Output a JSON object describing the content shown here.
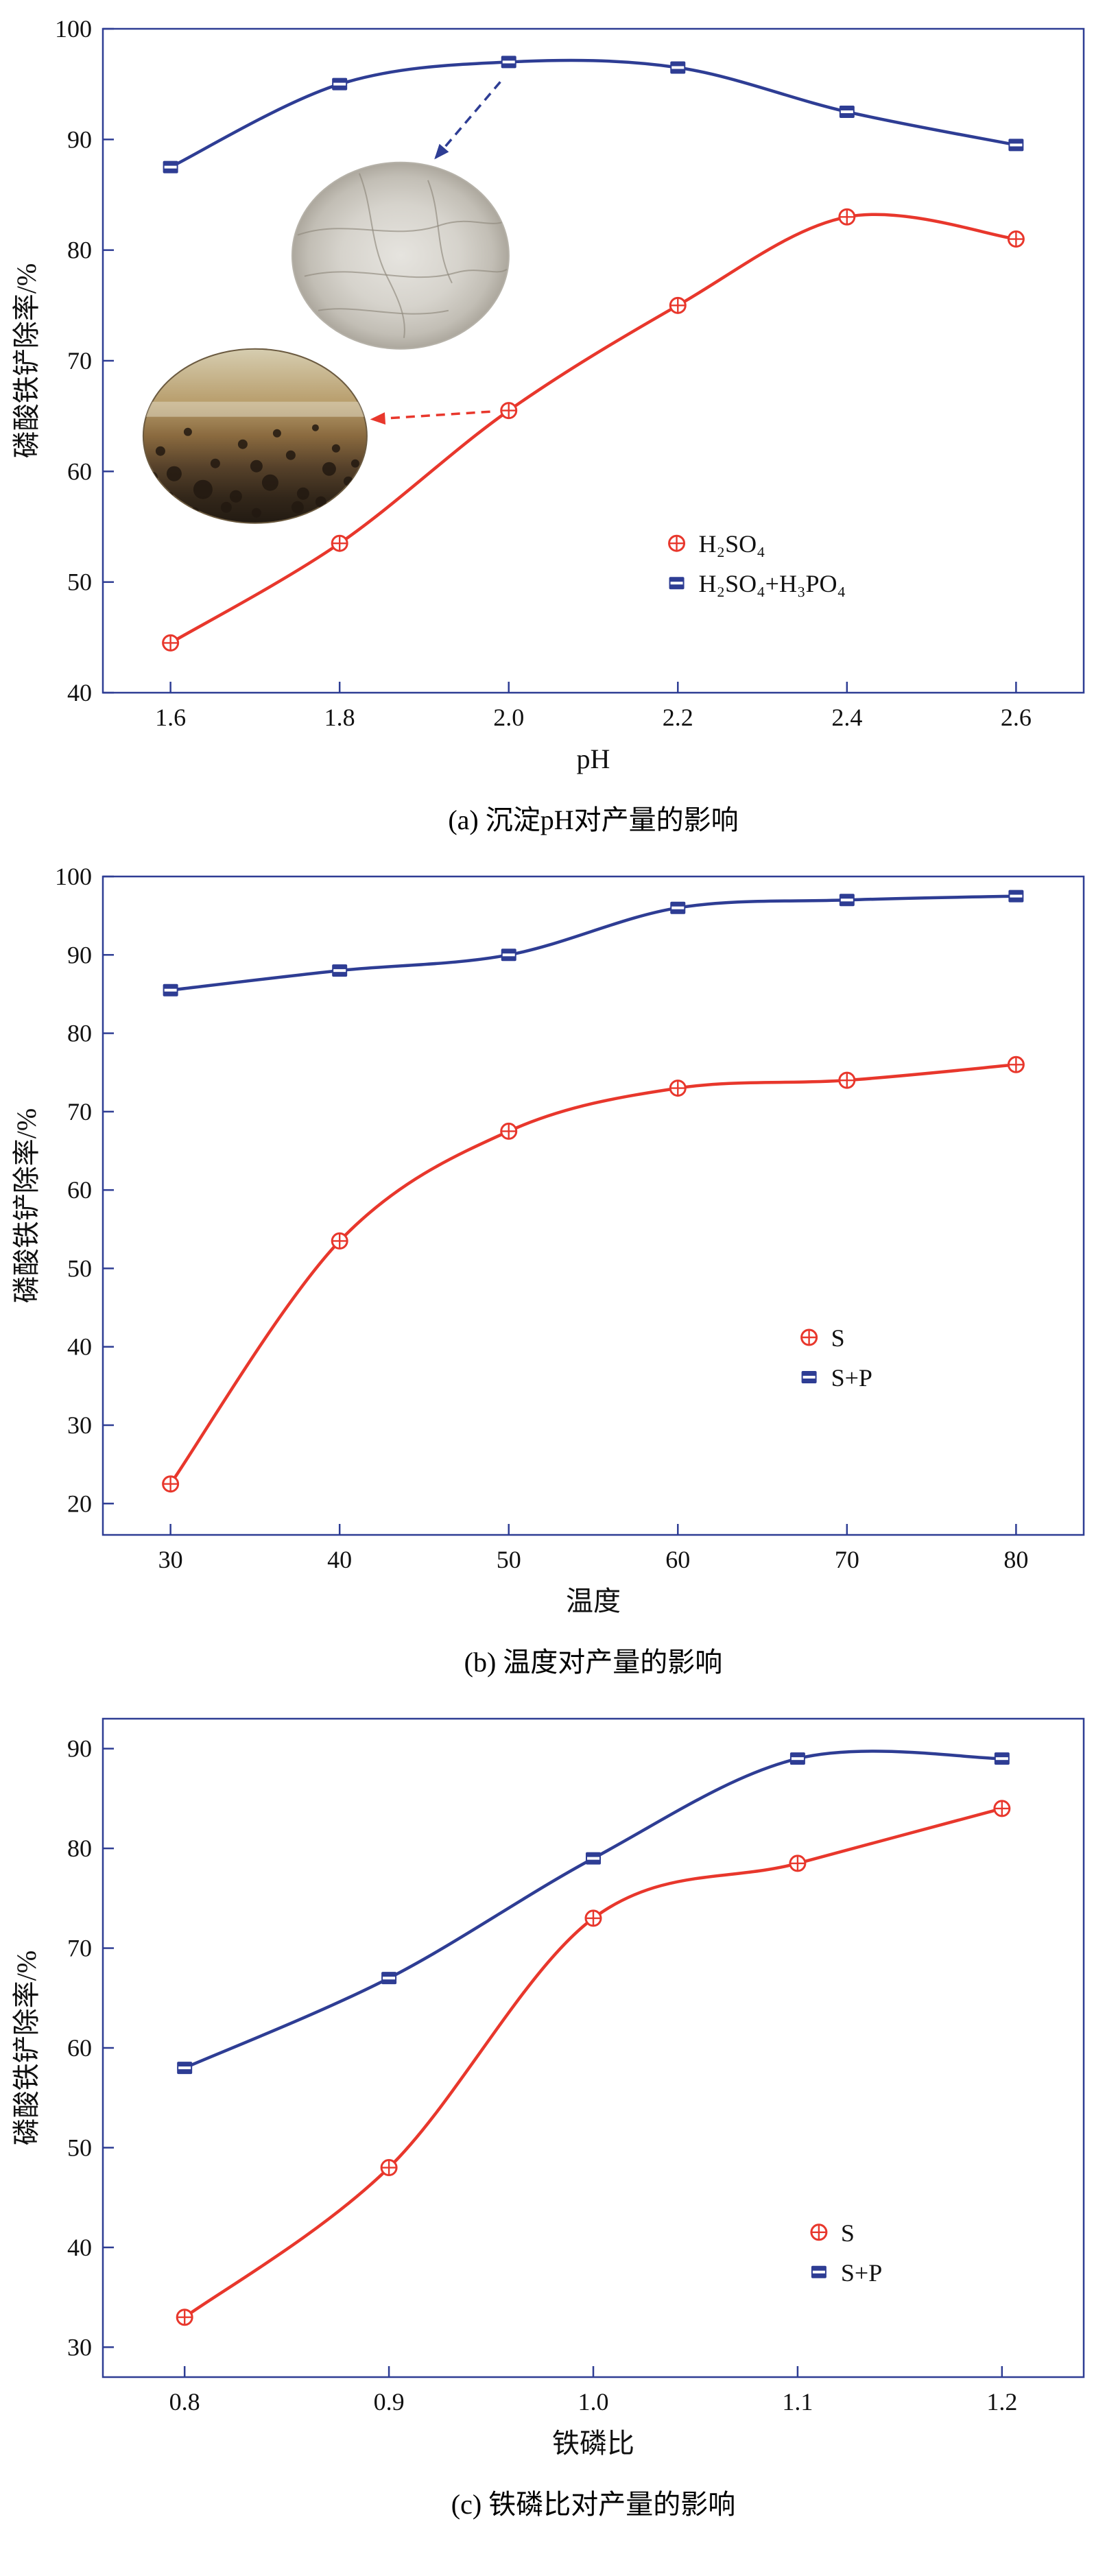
{
  "chart_data": [
    {
      "type": "line",
      "caption": "(a) 沉淀pH对产量的影响",
      "xlabel": "pH",
      "ylabel": "磷酸铁铲除率/%",
      "x": [
        1.6,
        1.8,
        2.0,
        2.2,
        2.4,
        2.6
      ],
      "xtick_labels": [
        "1.6",
        "1.8",
        "2.0",
        "2.2",
        "2.4",
        "2.6"
      ],
      "ylim": [
        40,
        100
      ],
      "yticks": [
        40,
        50,
        60,
        70,
        80,
        90,
        100
      ],
      "legend_position": "inside-right-lower",
      "grid": false,
      "series": [
        {
          "name": "H₂SO₄",
          "color": "#e8372c",
          "marker": "circle-plus",
          "values": [
            44.5,
            53.5,
            65.5,
            75,
            83,
            81
          ]
        },
        {
          "name": "H₂SO₄+H₃PO₄",
          "color": "#2e3d94",
          "marker": "square-slit",
          "values": [
            87.5,
            95,
            97,
            96.5,
            92.5,
            89.5
          ]
        }
      ]
    },
    {
      "type": "line",
      "caption": "(b) 温度对产量的影响",
      "xlabel": "温度",
      "ylabel": "磷酸铁铲除率/%",
      "x": [
        30,
        40,
        50,
        60,
        70,
        80
      ],
      "xtick_labels": [
        "30",
        "40",
        "50",
        "60",
        "70",
        "80"
      ],
      "ylim": [
        16,
        100
      ],
      "yticks": [
        20,
        30,
        40,
        50,
        60,
        70,
        80,
        90,
        100
      ],
      "legend_position": "inside-right-lower",
      "grid": false,
      "series": [
        {
          "name": "S",
          "color": "#e8372c",
          "marker": "circle-plus",
          "values": [
            22.5,
            53.5,
            67.5,
            73,
            74,
            76
          ]
        },
        {
          "name": "S+P",
          "color": "#2e3d94",
          "marker": "square-slit",
          "values": [
            85.5,
            88,
            90,
            96,
            97,
            97.5
          ]
        }
      ]
    },
    {
      "type": "line",
      "caption": "(c) 铁磷比对产量的影响",
      "xlabel": "铁磷比",
      "ylabel": "磷酸铁铲除率/%",
      "x": [
        0.8,
        0.9,
        1.0,
        1.1,
        1.2
      ],
      "xtick_labels": [
        "0.8",
        "0.9",
        "1.0",
        "1.1",
        "1.2"
      ],
      "ylim": [
        27,
        93
      ],
      "yticks": [
        30,
        40,
        50,
        60,
        70,
        80,
        90
      ],
      "legend_position": "inside-right-lower",
      "grid": false,
      "series": [
        {
          "name": "S",
          "color": "#e8372c",
          "marker": "circle-plus",
          "values": [
            33,
            48,
            73,
            78.5,
            84
          ]
        },
        {
          "name": "S+P",
          "color": "#2e3d94",
          "marker": "square-slit",
          "values": [
            58,
            67,
            79,
            89,
            89
          ]
        }
      ]
    }
  ]
}
